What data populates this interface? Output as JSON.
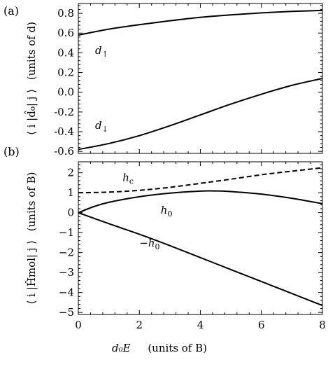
{
  "chart_data": [
    {
      "type": "line",
      "panel_label": "(a)",
      "ylabel": "⟨ i |d̂₀| j ⟩",
      "ylabel_units": "(units of d)",
      "xlim": [
        0,
        8
      ],
      "ylim": [
        -0.62,
        0.9
      ],
      "xticks": [
        0,
        2,
        4,
        6,
        8
      ],
      "yticks": [
        -0.6,
        -0.4,
        -0.2,
        0.0,
        0.2,
        0.4,
        0.6,
        0.8
      ],
      "ytick_labels": [
        "-0.6",
        "-0.4",
        "-0.2",
        "0.0",
        "0.2",
        "0.4",
        "0.6",
        "0.8"
      ],
      "series": [
        {
          "name": "d↑",
          "dashed": false,
          "x": [
            0,
            1,
            2,
            3,
            4,
            5,
            6,
            7,
            8
          ],
          "y": [
            0.58,
            0.64,
            0.685,
            0.725,
            0.76,
            0.785,
            0.805,
            0.82,
            0.83
          ]
        },
        {
          "name": "d↓",
          "dashed": false,
          "x": [
            0,
            1,
            2,
            3,
            4,
            5,
            6,
            7,
            8
          ],
          "y": [
            -0.58,
            -0.52,
            -0.44,
            -0.34,
            -0.23,
            -0.12,
            -0.02,
            0.07,
            0.14
          ]
        }
      ],
      "labels": [
        {
          "text": "d",
          "sub": "↑",
          "x": 0.55,
          "y": 0.39
        },
        {
          "text": "d",
          "sub": "↓",
          "x": 0.55,
          "y": -0.37
        }
      ]
    },
    {
      "type": "line",
      "panel_label": "(b)",
      "ylabel": "⟨ i |Ĥmol| j ⟩",
      "ylabel_units": "(units of B)",
      "xlabel": "d₀E",
      "xlabel_units": "(units of B)",
      "xlim": [
        0,
        8
      ],
      "ylim": [
        -5.1,
        2.55
      ],
      "xticks": [
        0,
        2,
        4,
        6,
        8
      ],
      "xtick_labels": [
        "0",
        "2",
        "4",
        "6",
        "8"
      ],
      "yticks": [
        -5,
        -4,
        -3,
        -2,
        -1,
        0,
        1,
        2
      ],
      "ytick_labels": [
        "−5",
        "−4",
        "−3",
        "−2",
        "−1",
        "0",
        "1",
        "2"
      ],
      "series": [
        {
          "name": "hc",
          "dashed": true,
          "x": [
            0,
            1,
            2,
            3,
            4,
            5,
            6,
            7,
            8
          ],
          "y": [
            1.0,
            1.03,
            1.12,
            1.27,
            1.47,
            1.68,
            1.9,
            2.08,
            2.25
          ]
        },
        {
          "name": "h0",
          "dashed": false,
          "x": [
            0,
            0.5,
            1,
            2,
            3,
            4,
            4.5,
            5,
            6,
            7,
            8
          ],
          "y": [
            0,
            0.3,
            0.52,
            0.8,
            0.98,
            1.08,
            1.09,
            1.06,
            0.93,
            0.72,
            0.45
          ]
        },
        {
          "name": "−h0",
          "dashed": false,
          "x": [
            0,
            1,
            2,
            3,
            4,
            5,
            6,
            7,
            8
          ],
          "y": [
            0,
            -0.55,
            -1.08,
            -1.65,
            -2.25,
            -2.85,
            -3.45,
            -4.05,
            -4.65
          ]
        }
      ],
      "labels": [
        {
          "text": "h",
          "sub": "c",
          "x": 1.45,
          "y": 1.58
        },
        {
          "text": "h",
          "sub": "0",
          "x": 2.7,
          "y": -0.05
        },
        {
          "text": "−h",
          "sub": "0",
          "x": 2.0,
          "y": -1.7
        }
      ]
    }
  ]
}
